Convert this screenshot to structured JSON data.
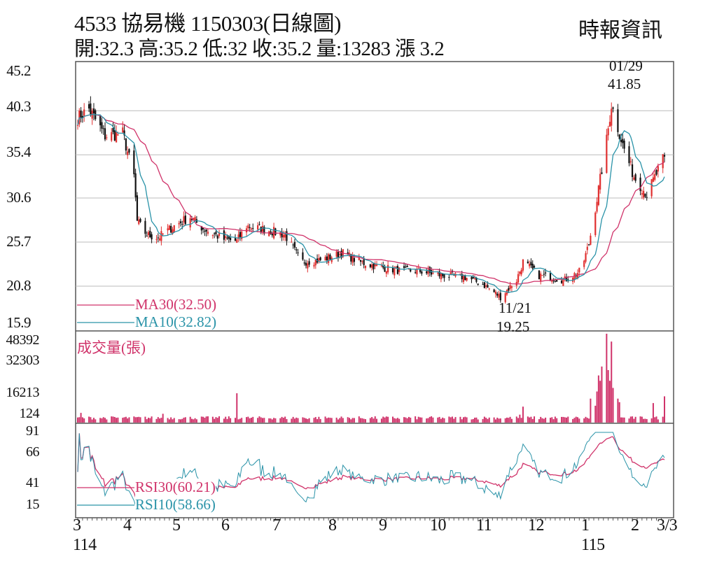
{
  "header": {
    "title": "4533  協易機 1150303(日線圖)",
    "ohlc": "開:32.3 高:35.2 低:32 收:35.2 量:13283 漲 3.2",
    "brand": "時報資訊"
  },
  "chart_data": [
    {
      "type": "candlestick",
      "title": "4533  協易機 1150303(日線圖)",
      "ylim": [
        15.9,
        45.2
      ],
      "y_ticks": [
        "45.2",
        "40.3",
        "35.4",
        "30.6",
        "25.7",
        "20.8",
        "15.9"
      ],
      "close_anchors": [
        [
          "114/03/03",
          39.5
        ],
        [
          "114/03/10",
          40.5
        ],
        [
          "114/03/20",
          37.5
        ],
        [
          "114/03/31",
          37.8
        ],
        [
          "114/04/07",
          33
        ],
        [
          "114/04/09",
          28
        ],
        [
          "114/04/15",
          26.5
        ],
        [
          "114/04/22",
          26.2
        ],
        [
          "114/05/02",
          27.5
        ],
        [
          "114/05/12",
          28.5
        ],
        [
          "114/05/20",
          27.2
        ],
        [
          "114/06/02",
          26
        ],
        [
          "114/06/10",
          25.8
        ],
        [
          "114/06/16",
          27.5
        ],
        [
          "114/06/30",
          27
        ],
        [
          "114/07/10",
          26.5
        ],
        [
          "114/07/20",
          23.5
        ],
        [
          "114/08/01",
          23.7
        ],
        [
          "114/08/15",
          24.5
        ],
        [
          "114/08/25",
          23.5
        ],
        [
          "114/09/05",
          23
        ],
        [
          "114/09/20",
          22.5
        ],
        [
          "114/10/01",
          22.5
        ],
        [
          "114/10/15",
          22
        ],
        [
          "114/10/30",
          21.8
        ],
        [
          "114/11/10",
          21
        ],
        [
          "114/11/21",
          19.6
        ],
        [
          "114/12/01",
          21.5
        ],
        [
          "114/12/05",
          23.5
        ],
        [
          "114/12/15",
          22
        ],
        [
          "114/12/31",
          21.5
        ],
        [
          "115/01/10",
          22.5
        ],
        [
          "115/01/15",
          25.5
        ],
        [
          "115/01/20",
          30.5
        ],
        [
          "115/01/26",
          37
        ],
        [
          "115/01/29",
          41
        ],
        [
          "115/02/05",
          36.5
        ],
        [
          "115/02/12",
          33
        ],
        [
          "115/02/20",
          31
        ],
        [
          "115/03/03",
          35.2
        ]
      ],
      "legend": [
        {
          "name": "MA30(32.50)",
          "color": "#d0336a"
        },
        {
          "name": "MA10(32.82)",
          "color": "#2a93a8"
        }
      ],
      "annotations": [
        {
          "date": "01/29",
          "value": "41.85"
        },
        {
          "date": "11/21",
          "value": "19.25"
        }
      ],
      "up_color": "#e03030",
      "down_color": "#111111"
    },
    {
      "type": "bar",
      "title": "成交量(張)",
      "y_ticks": [
        "48392",
        "32303",
        "16213",
        "124"
      ],
      "ylim": [
        124,
        48392
      ],
      "color": "#d0336a",
      "volume_spikes": [
        [
          "114/03/05",
          4000
        ],
        [
          "114/04/25",
          3500
        ],
        [
          "114/06/10",
          15000
        ],
        [
          "114/12/05",
          7500
        ],
        [
          "114/12/03",
          3000
        ],
        [
          "115/01/16",
          12000
        ],
        [
          "115/01/19",
          8000
        ],
        [
          "115/01/20",
          16000
        ],
        [
          "115/01/21",
          25000
        ],
        [
          "115/01/22",
          22000
        ],
        [
          "115/01/23",
          30000
        ],
        [
          "115/01/26",
          48392
        ],
        [
          "115/01/27",
          28000
        ],
        [
          "115/01/28",
          22000
        ],
        [
          "115/01/29",
          44000
        ],
        [
          "115/01/30",
          18000
        ],
        [
          "115/02/02",
          12000
        ],
        [
          "115/02/03",
          10000
        ],
        [
          "115/02/24",
          9500
        ],
        [
          "115/03/03",
          13283
        ]
      ]
    },
    {
      "type": "line",
      "y_ticks": [
        "91",
        "66",
        "41",
        "15"
      ],
      "ylim": [
        15,
        91
      ],
      "series": [
        {
          "name": "RSI30(60.21)",
          "color": "#d0336a"
        },
        {
          "name": "RSI10(58.66)",
          "color": "#2a93a8"
        }
      ]
    }
  ],
  "x_axis": {
    "ticks": [
      "3",
      "4",
      "5",
      "6",
      "7",
      "8",
      "9",
      "10",
      "11",
      "12",
      "1",
      "2",
      "3/3"
    ],
    "years": [
      "114",
      "115"
    ]
  }
}
